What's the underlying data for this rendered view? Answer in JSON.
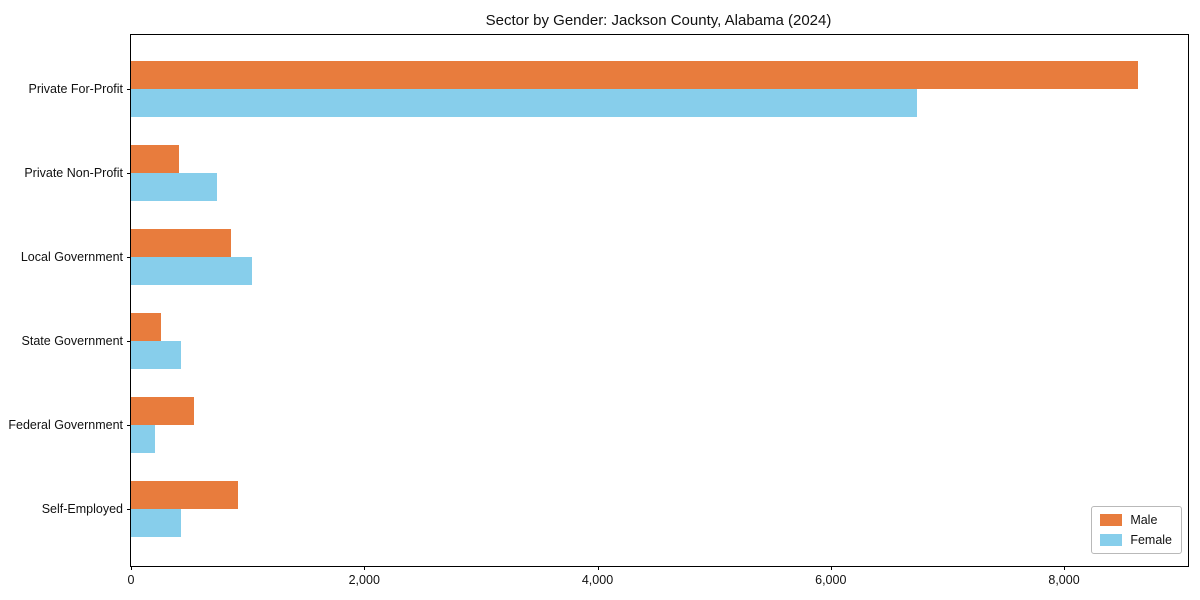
{
  "chart_data": {
    "type": "bar",
    "orientation": "horizontal",
    "title": "Sector by Gender: Jackson County, Alabama (2024)",
    "categories": [
      "Private For-Profit",
      "Private Non-Profit",
      "Local Government",
      "State Government",
      "Federal Government",
      "Self-Employed"
    ],
    "series": [
      {
        "name": "Male",
        "color": "#e87c3d",
        "values": [
          8630,
          410,
          860,
          255,
          540,
          920
        ]
      },
      {
        "name": "Female",
        "color": "#87ceeb",
        "values": [
          6740,
          735,
          1040,
          430,
          205,
          430
        ]
      }
    ],
    "xlim": [
      0,
      9063
    ],
    "xticks": [
      0,
      2000,
      4000,
      6000,
      8000
    ],
    "xtick_labels": [
      "0",
      "2,000",
      "4,000",
      "6,000",
      "8,000"
    ],
    "xlabel": "",
    "ylabel": "",
    "grid": false,
    "legend_position": "lower right"
  }
}
